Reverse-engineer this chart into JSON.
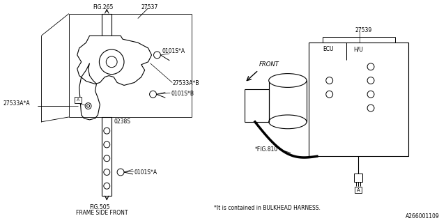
{
  "bg_color": "#ffffff",
  "line_color": "#000000",
  "fig_width": 6.4,
  "fig_height": 3.2,
  "dpi": 100,
  "part_number": "A266001109",
  "labels": {
    "FIG265": "FIG.265",
    "27537": "27537",
    "0101SA": "0101S*A",
    "27533AB": "27533A*B",
    "27533AA": "27533A*A",
    "0238S": "0238S",
    "0101SB": "0101S*B",
    "0101SA2": "0101S*A",
    "FIG505": "FIG.505",
    "FRAME_SIDE_FRONT": "FRAME SIDE FRONT",
    "27539": "27539",
    "ECU": "ECU",
    "HU": "H/U",
    "FRONT": "FRONT",
    "FIG810": "*FIG.810",
    "BULKHEAD": "*It is contained in BULKHEAD HARNESS.",
    "A_label": "A"
  }
}
